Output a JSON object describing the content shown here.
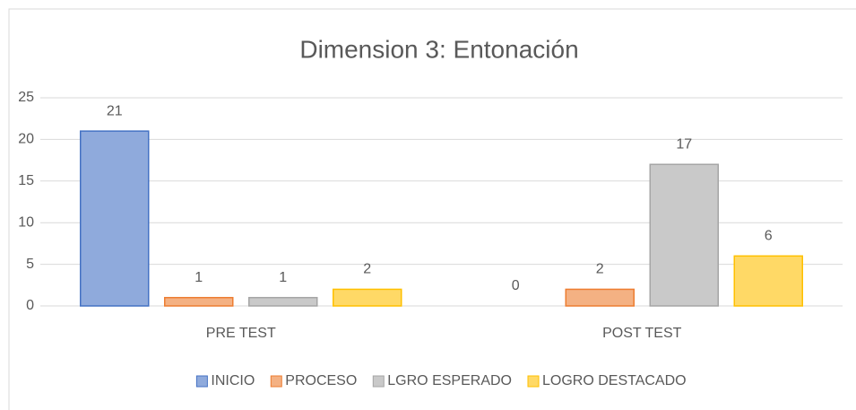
{
  "chart_data": {
    "type": "bar",
    "title": "Dimension 3: Entonación",
    "categories": [
      "PRE TEST",
      "POST TEST"
    ],
    "series": [
      {
        "name": "INICIO",
        "color": "#8faadc",
        "values": [
          21,
          0
        ]
      },
      {
        "name": "PROCESO",
        "color": "#f4b183",
        "values": [
          1,
          2
        ]
      },
      {
        "name": "LGRO ESPERADO",
        "color": "#c9c9c9",
        "values": [
          1,
          17
        ]
      },
      {
        "name": "LOGRO DESTACADO",
        "color": "#ffd966",
        "values": [
          2,
          6
        ]
      }
    ],
    "ylim": [
      0,
      25
    ],
    "yticks": [
      0,
      5,
      10,
      15,
      20,
      25
    ],
    "grid": true,
    "legend": "bottom"
  }
}
